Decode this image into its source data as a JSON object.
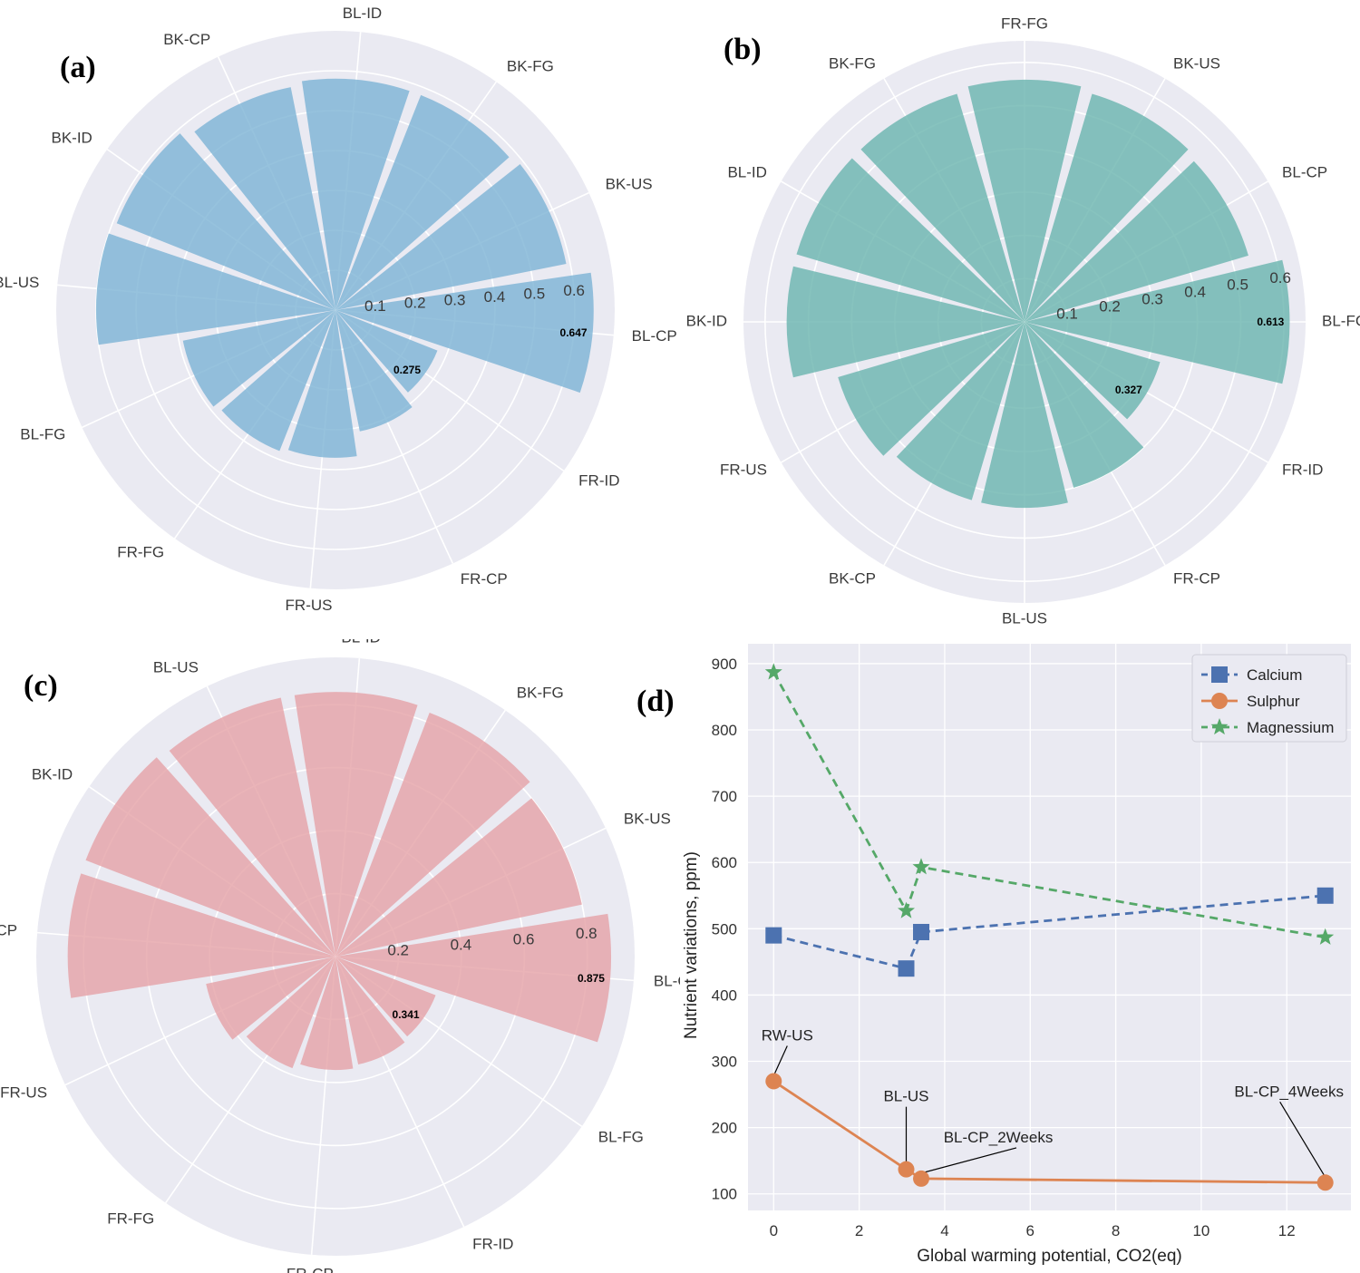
{
  "chart_data": [
    {
      "panel": "(a)",
      "type": "bar",
      "subtype": "polar-bar",
      "color": "#7fb5d5",
      "rings": [
        0.1,
        0.2,
        0.3,
        0.4,
        0.5,
        0.6
      ],
      "ring_labels": [
        "0.1",
        "0.2",
        "0.3",
        "0.4",
        "0.5",
        "0.6"
      ],
      "rmax": 0.7,
      "categories": [
        "BL-CP",
        "BK-US",
        "BK-FG",
        "BL-ID",
        "BK-CP",
        "BK-ID",
        "BL-US",
        "BL-FG",
        "FR-FG",
        "FR-US",
        "FR-CP",
        "FR-ID"
      ],
      "values": [
        0.647,
        0.59,
        0.58,
        0.58,
        0.57,
        0.59,
        0.6,
        0.39,
        0.38,
        0.37,
        0.31,
        0.275
      ],
      "annotations": [
        {
          "category": "BL-CP",
          "text": "0.647"
        },
        {
          "category": "FR-ID",
          "text": "0.275"
        }
      ]
    },
    {
      "panel": "(b)",
      "type": "bar",
      "subtype": "polar-bar",
      "color": "#6db6b0",
      "rings": [
        0.1,
        0.2,
        0.3,
        0.4,
        0.5,
        0.6
      ],
      "ring_labels": [
        "0.1",
        "0.2",
        "0.3",
        "0.4",
        "0.5",
        "0.6"
      ],
      "rmax": 0.65,
      "categories": [
        "BL-FG",
        "BL-CP",
        "BK-US",
        "FR-FG",
        "BK-FG",
        "BL-ID",
        "BK-ID",
        "FR-US",
        "BK-CP",
        "BL-US",
        "FR-CP",
        "FR-ID"
      ],
      "values": [
        0.613,
        0.54,
        0.55,
        0.56,
        0.55,
        0.55,
        0.55,
        0.45,
        0.43,
        0.43,
        0.4,
        0.327
      ],
      "annotations": [
        {
          "category": "BL-FG",
          "text": "0.613"
        },
        {
          "category": "FR-ID",
          "text": "0.327"
        }
      ]
    },
    {
      "panel": "(c)",
      "type": "bar",
      "subtype": "polar-bar",
      "color": "#e5a3a8",
      "rings": [
        0.2,
        0.4,
        0.6,
        0.8
      ],
      "ring_labels": [
        "0.2",
        "0.4",
        "0.6",
        "0.8"
      ],
      "rmax": 0.95,
      "categories": [
        "BL-CP",
        "BK-US",
        "BK-FG",
        "BL-ID",
        "BL-US",
        "BK-ID",
        "BK-CP",
        "FR-US",
        "FR-FG",
        "FR-CP",
        "FR-ID",
        "BL-FG"
      ],
      "values": [
        0.875,
        0.8,
        0.83,
        0.84,
        0.84,
        0.85,
        0.85,
        0.42,
        0.38,
        0.36,
        0.35,
        0.341
      ],
      "annotations": [
        {
          "category": "BL-CP",
          "text": "0.875"
        },
        {
          "category": "BL-FG",
          "text": "0.341"
        }
      ]
    },
    {
      "panel": "(d)",
      "type": "line",
      "xlabel": "Global warming potential, CO2(eq)",
      "ylabel": "Nutrient variations, ppm)",
      "xlim": [
        -0.6,
        13.5
      ],
      "ylim": [
        75,
        930
      ],
      "xticks": [
        0,
        2,
        4,
        6,
        8,
        10,
        12
      ],
      "yticks": [
        100,
        200,
        300,
        400,
        500,
        600,
        700,
        800,
        900
      ],
      "series": [
        {
          "name": "Calcium",
          "color": "#4c72b0",
          "dash": true,
          "marker": "square",
          "x": [
            0,
            3.1,
            3.45,
            12.9
          ],
          "y": [
            490,
            440,
            495,
            550
          ]
        },
        {
          "name": "Sulphur",
          "color": "#dd8452",
          "dash": false,
          "marker": "circle",
          "x": [
            0,
            3.1,
            3.45,
            12.9
          ],
          "y": [
            270,
            137,
            123,
            117
          ]
        },
        {
          "name": "Magnessium",
          "color": "#55a868",
          "dash": true,
          "marker": "star",
          "x": [
            0,
            3.1,
            3.45,
            12.9
          ],
          "y": [
            887,
            527,
            593,
            487
          ]
        }
      ],
      "annotations": [
        {
          "text": "RW-US",
          "x": 0,
          "y": 270
        },
        {
          "text": "BL-US",
          "x": 3.1,
          "y": 137
        },
        {
          "text": "BL-CP_2Weeks",
          "x": 3.45,
          "y": 123
        },
        {
          "text": "BL-CP_4Weeks",
          "x": 12.9,
          "y": 117
        }
      ],
      "legend": "top-right"
    }
  ]
}
